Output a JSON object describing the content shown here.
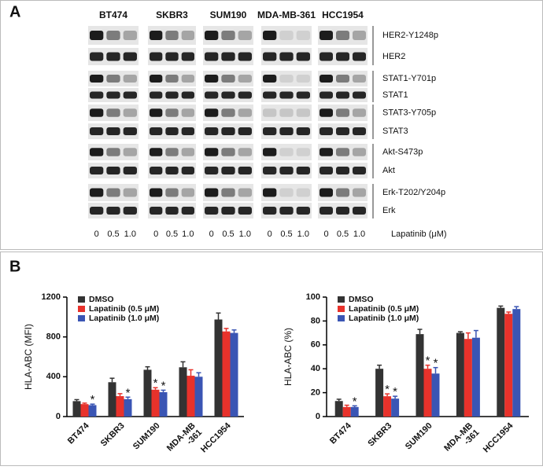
{
  "panel_a": {
    "label": "A",
    "cell_lines": [
      "BT474",
      "SKBR3",
      "SUM190",
      "MDA-MB-361",
      "HCC1954"
    ],
    "proteins": [
      "HER2-Y1248p",
      "HER2",
      "STAT1-Y701p",
      "STAT1",
      "STAT3-Y705p",
      "STAT3",
      "Akt-S473p",
      "Akt",
      "Erk-T202/Y204p",
      "Erk"
    ],
    "doses": [
      "0",
      "0.5",
      "1.0"
    ],
    "dose_axis_label": "Lapatinib (μM)"
  },
  "panel_b": {
    "label": "B"
  },
  "chart_data": [
    {
      "type": "bar",
      "ylabel": "HLA-ABC (MFI)",
      "categories": [
        "BT474",
        "SKBR3",
        "SUM190",
        "MDA-MB\n-361",
        "HCC1954"
      ],
      "series": [
        {
          "name": "DMSO",
          "color": "#333333",
          "values": [
            155,
            345,
            470,
            495,
            975
          ],
          "errors": [
            15,
            40,
            30,
            55,
            65
          ]
        },
        {
          "name": "Lapatinib (0.5 μM)",
          "color": "#e8322b",
          "values": [
            125,
            205,
            270,
            410,
            855
          ],
          "errors": [
            10,
            25,
            20,
            60,
            30
          ]
        },
        {
          "name": "Lapatinib (1.0 μM)",
          "color": "#3a55b4",
          "values": [
            115,
            175,
            245,
            400,
            840
          ],
          "errors": [
            10,
            20,
            20,
            40,
            30
          ]
        }
      ],
      "ylim": [
        0,
        1200
      ],
      "yticks": [
        0,
        400,
        800,
        1200
      ],
      "legend": "upper left",
      "annotations": [
        {
          "text": "*",
          "series": 2,
          "category": 0
        },
        {
          "text": "*",
          "series": 2,
          "category": 1
        },
        {
          "text": "*",
          "series": 1,
          "category": 2
        },
        {
          "text": "*",
          "series": 2,
          "category": 2
        }
      ]
    },
    {
      "type": "bar",
      "ylabel": "HLA-ABC (%)",
      "categories": [
        "BT474",
        "SKBR3",
        "SUM190",
        "MDA-MB\n-361",
        "HCC1954"
      ],
      "series": [
        {
          "name": "DMSO",
          "color": "#333333",
          "values": [
            13,
            40,
            69,
            70,
            91
          ],
          "errors": [
            1.5,
            3,
            4,
            1,
            1.5
          ]
        },
        {
          "name": "Lapatinib (0.5 μM)",
          "color": "#e8322b",
          "values": [
            8,
            17,
            40,
            65,
            86
          ],
          "errors": [
            1.5,
            2,
            3,
            5,
            1.5
          ]
        },
        {
          "name": "Lapatinib (1.0 μM)",
          "color": "#3a55b4",
          "values": [
            8,
            15,
            36,
            66,
            90
          ],
          "errors": [
            1,
            2,
            5,
            6,
            2
          ]
        }
      ],
      "ylim": [
        0,
        100
      ],
      "yticks": [
        0,
        20,
        40,
        60,
        80,
        100
      ],
      "legend": "upper left",
      "annotations": [
        {
          "text": "*",
          "series": 2,
          "category": 0
        },
        {
          "text": "*",
          "series": 1,
          "category": 1
        },
        {
          "text": "*",
          "series": 2,
          "category": 1
        },
        {
          "text": "*",
          "series": 1,
          "category": 2
        },
        {
          "text": "*",
          "series": 2,
          "category": 2
        }
      ]
    }
  ]
}
